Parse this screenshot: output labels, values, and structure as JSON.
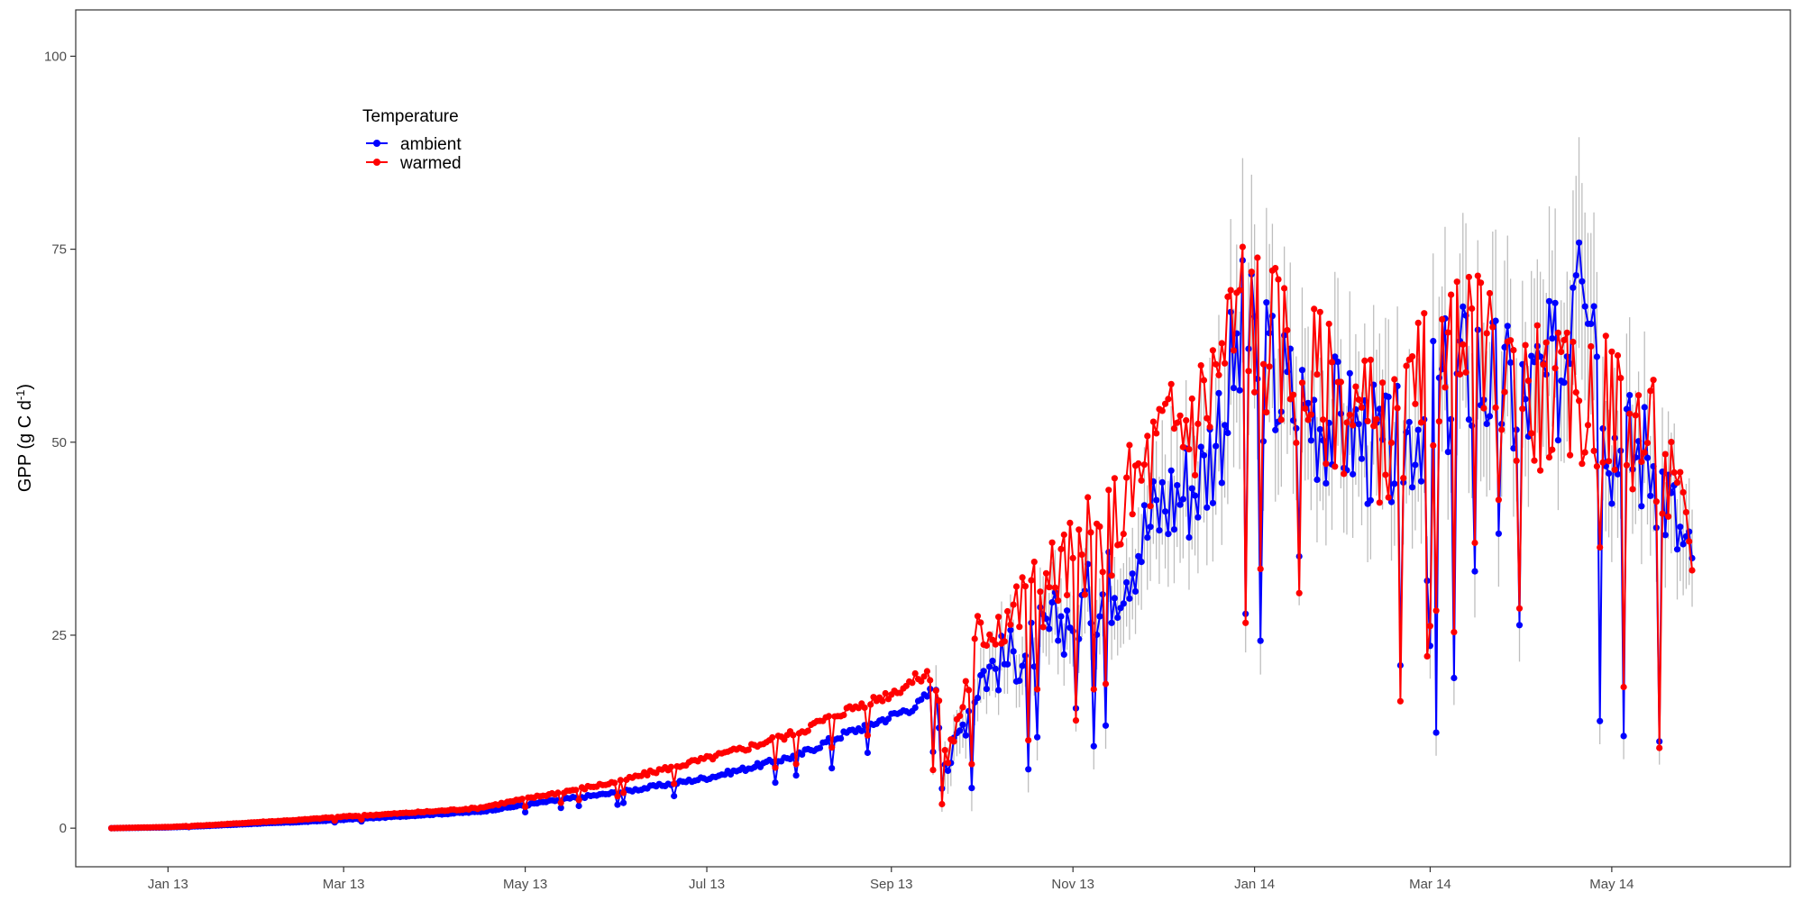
{
  "chart_data": {
    "type": "line",
    "title": "",
    "xlabel": "",
    "ylabel": "GPP (g C d-1)",
    "ylabel_parts": {
      "main": "GPP (g C d",
      "superscript": "-1",
      "close": ")"
    },
    "x_type": "date",
    "xlim": [
      "2012-12-01",
      "2014-06-30"
    ],
    "ylim": [
      -5,
      106
    ],
    "x_ticks": [
      {
        "date": "2013-01-01",
        "label": "Jan 13"
      },
      {
        "date": "2013-03-01",
        "label": "Mar 13"
      },
      {
        "date": "2013-05-01",
        "label": "May 13"
      },
      {
        "date": "2013-07-01",
        "label": "Jul 13"
      },
      {
        "date": "2013-09-01",
        "label": "Sep 13"
      },
      {
        "date": "2013-11-01",
        "label": "Nov 13"
      },
      {
        "date": "2014-01-01",
        "label": "Jan 14"
      },
      {
        "date": "2014-03-01",
        "label": "Mar 14"
      },
      {
        "date": "2014-05-01",
        "label": "May 14"
      }
    ],
    "y_ticks": [
      0,
      25,
      50,
      75,
      100
    ],
    "grid": false,
    "legend": {
      "title": "Temperature",
      "position": "top-left",
      "entries": [
        {
          "name": "ambient",
          "color": "#0000ff"
        },
        {
          "name": "warmed",
          "color": "#ff0000"
        }
      ]
    },
    "error_bar_color": "#bebebe",
    "error_bars_start": "2013-09-15",
    "series": [
      {
        "name": "ambient",
        "color": "#0000ff",
        "points": [
          [
            "2012-12-13",
            0
          ],
          [
            "2013-01-01",
            0.1
          ],
          [
            "2013-01-15",
            0.3
          ],
          [
            "2013-02-01",
            0.6
          ],
          [
            "2013-02-15",
            0.8
          ],
          [
            "2013-03-01",
            1.1
          ],
          [
            "2013-03-15",
            1.4
          ],
          [
            "2013-04-01",
            1.8
          ],
          [
            "2013-04-15",
            2.1
          ],
          [
            "2013-05-01",
            3.0
          ],
          [
            "2013-05-15",
            3.8
          ],
          [
            "2013-06-01",
            4.6
          ],
          [
            "2013-06-15",
            5.5
          ],
          [
            "2013-07-01",
            6.5
          ],
          [
            "2013-07-15",
            7.8
          ],
          [
            "2013-08-01",
            9.5
          ],
          [
            "2013-08-15",
            12.0
          ],
          [
            "2013-09-01",
            14.5
          ],
          [
            "2013-09-10",
            16.0
          ],
          [
            "2013-09-15",
            18.0
          ],
          [
            "2013-09-20",
            8.0
          ],
          [
            "2013-10-01",
            20.0
          ],
          [
            "2013-10-15",
            23.0
          ],
          [
            "2013-11-01",
            28.0
          ],
          [
            "2013-11-15",
            32.0
          ],
          [
            "2013-12-01",
            42.0
          ],
          [
            "2013-12-15",
            46.0
          ],
          [
            "2013-12-28",
            63.0
          ],
          [
            "2014-01-15",
            55.0
          ],
          [
            "2014-02-01",
            52.0
          ],
          [
            "2014-02-15",
            48.0
          ],
          [
            "2014-03-01",
            55.0
          ],
          [
            "2014-03-15",
            60.0
          ],
          [
            "2014-04-01",
            55.0
          ],
          [
            "2014-04-15",
            60.0
          ],
          [
            "2014-04-20",
            85.0
          ],
          [
            "2014-05-01",
            50.0
          ],
          [
            "2014-05-15",
            48.0
          ],
          [
            "2014-05-28",
            33.0
          ]
        ]
      },
      {
        "name": "warmed",
        "color": "#ff0000",
        "points": [
          [
            "2012-12-13",
            0
          ],
          [
            "2013-01-01",
            0.15
          ],
          [
            "2013-01-15",
            0.4
          ],
          [
            "2013-02-01",
            0.8
          ],
          [
            "2013-02-15",
            1.1
          ],
          [
            "2013-03-01",
            1.5
          ],
          [
            "2013-03-15",
            1.8
          ],
          [
            "2013-04-01",
            2.2
          ],
          [
            "2013-04-15",
            2.6
          ],
          [
            "2013-05-01",
            3.8
          ],
          [
            "2013-05-15",
            4.8
          ],
          [
            "2013-06-01",
            6.0
          ],
          [
            "2013-06-15",
            7.5
          ],
          [
            "2013-07-01",
            9.0
          ],
          [
            "2013-07-15",
            10.5
          ],
          [
            "2013-08-01",
            12.5
          ],
          [
            "2013-08-15",
            15.0
          ],
          [
            "2013-09-01",
            17.5
          ],
          [
            "2013-09-10",
            19.5
          ],
          [
            "2013-09-15",
            20.0
          ],
          [
            "2013-09-20",
            9.0
          ],
          [
            "2013-10-01",
            26.0
          ],
          [
            "2013-10-15",
            29.0
          ],
          [
            "2013-11-01",
            35.0
          ],
          [
            "2013-11-15",
            40.0
          ],
          [
            "2013-12-01",
            50.0
          ],
          [
            "2013-12-15",
            55.0
          ],
          [
            "2013-12-28",
            68.0
          ],
          [
            "2014-01-15",
            60.0
          ],
          [
            "2014-02-01",
            55.0
          ],
          [
            "2014-02-15",
            50.0
          ],
          [
            "2014-03-01",
            58.0
          ],
          [
            "2014-03-15",
            62.0
          ],
          [
            "2014-04-01",
            57.0
          ],
          [
            "2014-04-15",
            55.0
          ],
          [
            "2014-05-01",
            55.0
          ],
          [
            "2014-05-15",
            50.0
          ],
          [
            "2014-05-28",
            36.0
          ]
        ]
      }
    ]
  }
}
